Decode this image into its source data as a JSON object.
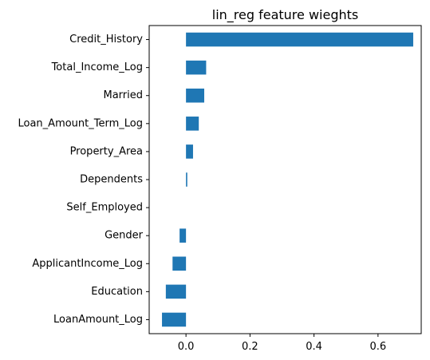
{
  "chart_data": {
    "type": "bar",
    "orientation": "horizontal",
    "title": "lin_reg feature wieghts",
    "xlabel": "",
    "ylabel": "",
    "xlim": [
      -0.115,
      0.735
    ],
    "xticks": [
      0.0,
      0.2,
      0.4,
      0.6
    ],
    "xtick_labels": [
      "0.0",
      "0.2",
      "0.4",
      "0.6"
    ],
    "grid": false,
    "legend": "none",
    "bar_color": "#1f77b4",
    "categories": [
      "Credit_History",
      "Total_Income_Log",
      "Married",
      "Loan_Amount_Term_Log",
      "Property_Area",
      "Dependents",
      "Self_Employed",
      "Gender",
      "ApplicantIncome_Log",
      "Education",
      "LoanAmount_Log"
    ],
    "values": [
      0.71,
      0.063,
      0.057,
      0.04,
      0.022,
      0.004,
      0.0,
      -0.02,
      -0.042,
      -0.063,
      -0.075
    ]
  }
}
